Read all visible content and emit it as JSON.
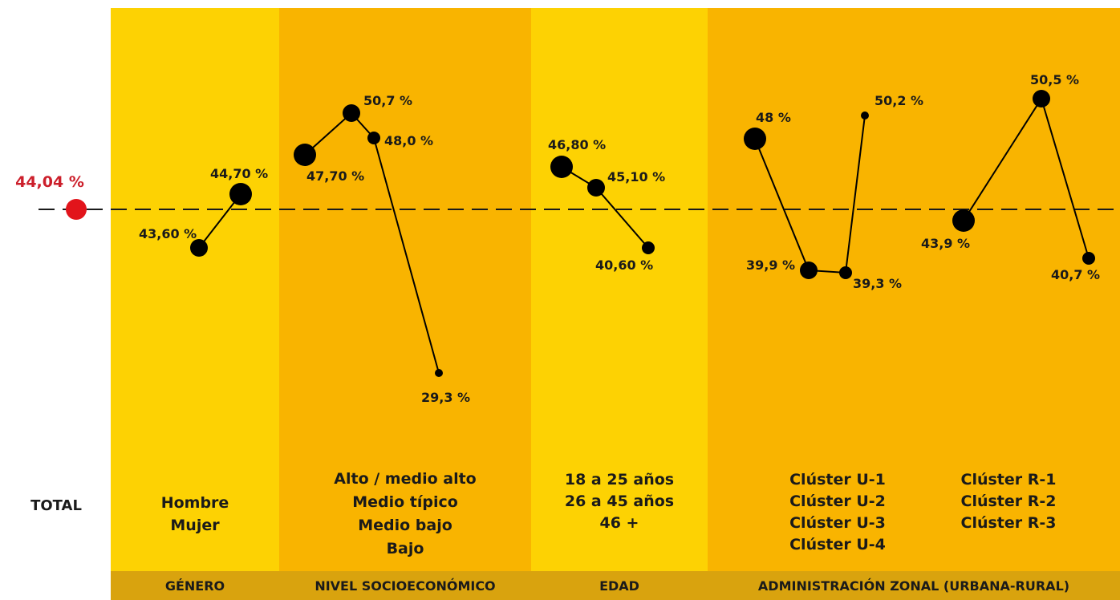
{
  "colors": {
    "light_band": "#FDD203",
    "dark_band": "#F9B400",
    "footer_band": "#D9A30E",
    "total_marker": "#E2141B",
    "point": "#000000"
  },
  "total_label": "TOTAL",
  "chart_data": {
    "type": "line",
    "reference": {
      "value": 44.04,
      "label": "44,04 %"
    },
    "groups": [
      {
        "name": "GÉNERO",
        "categories": [
          "Hombre",
          "Mujer"
        ],
        "series": [
          {
            "values": [
              43.6,
              44.7
            ],
            "labels": [
              "43,60 %",
              "44,70 %"
            ]
          }
        ]
      },
      {
        "name": "NIVEL SOCIOECONÓMICO",
        "categories": [
          "Alto / medio alto",
          "Medio típico",
          "Medio bajo",
          "Bajo"
        ],
        "series": [
          {
            "values": [
              47.7,
              50.7,
              48.0,
              29.3
            ],
            "labels": [
              "47,70 %",
              "50,7 %",
              "48,0 %",
              "29,3 %"
            ]
          }
        ]
      },
      {
        "name": "EDAD",
        "categories": [
          "18 a 25 años",
          "26 a 45 años",
          "46 +"
        ],
        "series": [
          {
            "values": [
              46.8,
              45.1,
              40.6
            ],
            "labels": [
              "46,80 %",
              "45,10 %",
              "40,60 %"
            ]
          }
        ]
      },
      {
        "name": "ADMINISTRACIÓN ZONAL (URBANA-RURAL)",
        "categories": [
          "Clúster U-1",
          "Clúster U-2",
          "Clúster U-3",
          "Clúster U-4",
          "Clúster R-1",
          "Clúster R-2",
          "Clúster R-3"
        ],
        "series": [
          {
            "values": [
              48.0,
              39.9,
              39.3,
              50.2
            ],
            "labels": [
              "48 %",
              "39,9 %",
              "39,3 %",
              "50,2 %"
            ]
          },
          {
            "values": [
              43.9,
              50.5,
              40.7
            ],
            "labels": [
              "43,9 %",
              "50,5 %",
              "40,7 %"
            ]
          }
        ]
      }
    ]
  }
}
